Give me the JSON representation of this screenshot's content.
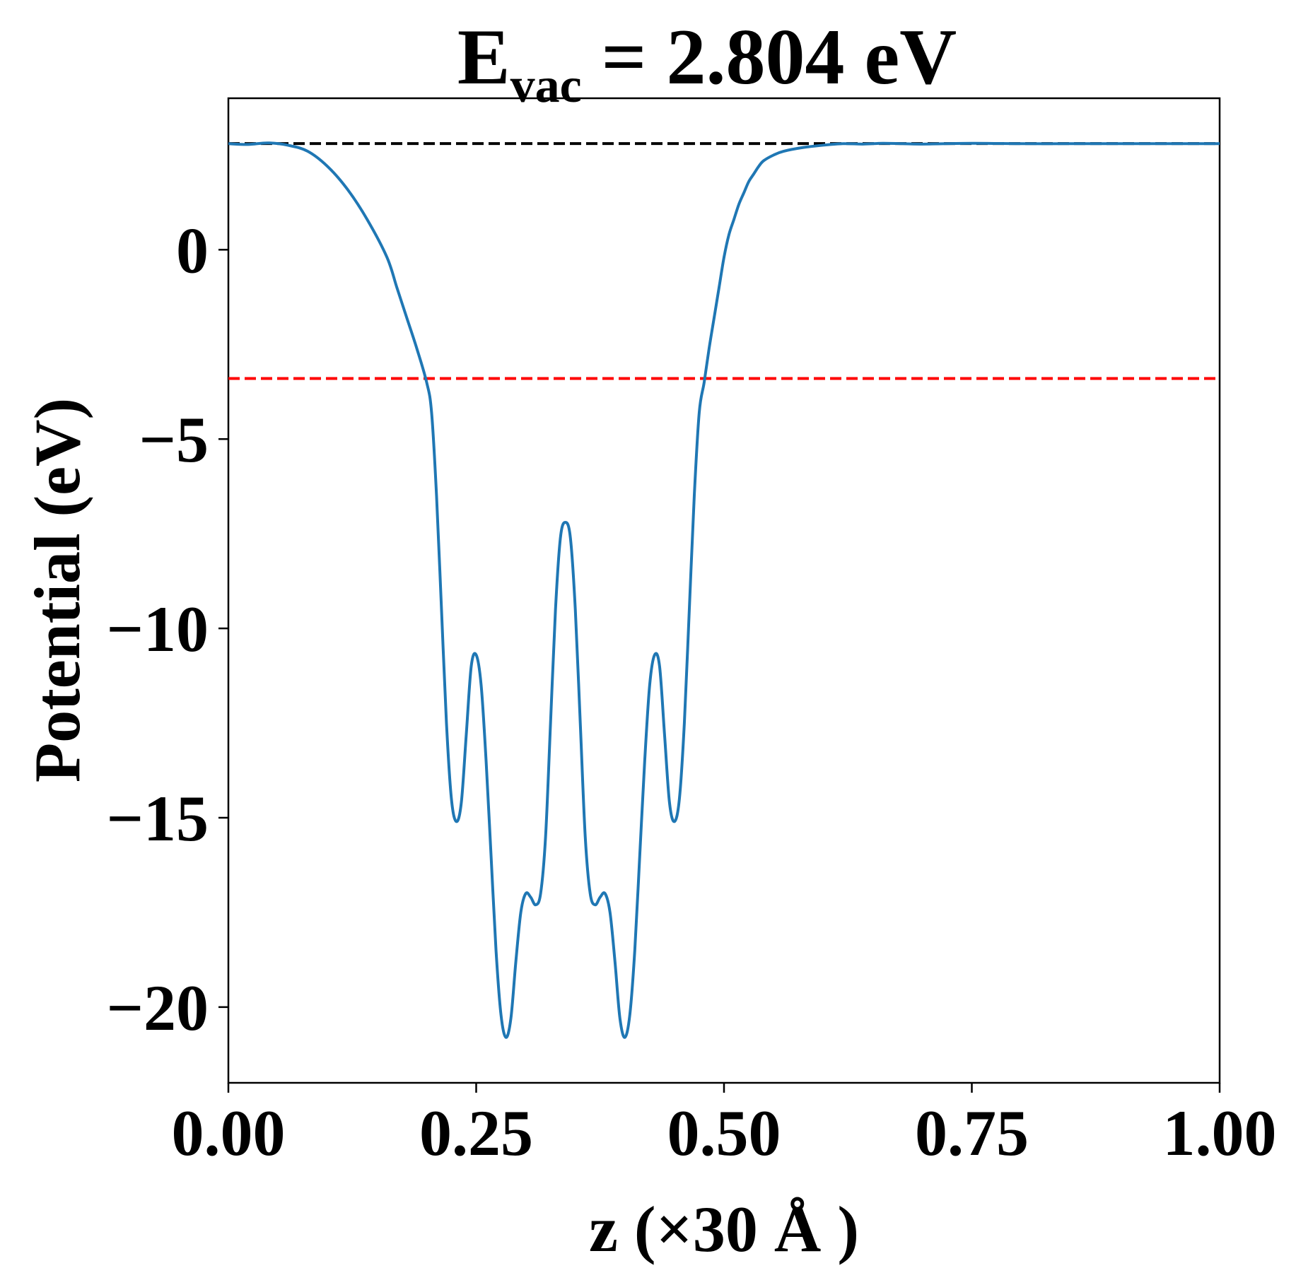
{
  "chart_data": {
    "type": "line",
    "title": {
      "main": "E",
      "subscript": "vac",
      "rest": " = 2.804 eV"
    },
    "xlabel": "z (×30 Å )",
    "ylabel": "Potential (eV)",
    "xlim": [
      0.0,
      1.0
    ],
    "ylim": [
      -22,
      4.0
    ],
    "xticks": [
      0.0,
      0.25,
      0.5,
      0.75,
      1.0
    ],
    "xtick_labels": [
      "0.00",
      "0.25",
      "0.50",
      "0.75",
      "1.00"
    ],
    "yticks": [
      0,
      -5,
      -10,
      -15,
      -20
    ],
    "ytick_labels": [
      "0",
      "−5",
      "−10",
      "−15",
      "−20"
    ],
    "hlines": [
      {
        "y": 2.804,
        "color": "#000000",
        "style": "dashed"
      },
      {
        "y": -3.4,
        "color": "#ff0000",
        "style": "dashed"
      }
    ],
    "series": [
      {
        "color": "#1f77b4",
        "x": [
          0.0,
          0.02,
          0.04,
          0.06,
          0.08,
          0.1,
          0.12,
          0.14,
          0.16,
          0.17,
          0.18,
          0.19,
          0.2,
          0.205,
          0.21,
          0.215,
          0.22,
          0.225,
          0.23,
          0.235,
          0.24,
          0.245,
          0.25,
          0.255,
          0.26,
          0.265,
          0.27,
          0.275,
          0.28,
          0.285,
          0.29,
          0.295,
          0.3,
          0.305,
          0.31,
          0.315,
          0.32,
          0.325,
          0.33,
          0.335,
          0.34,
          0.345,
          0.35,
          0.355,
          0.36,
          0.365,
          0.37,
          0.375,
          0.38,
          0.385,
          0.39,
          0.395,
          0.4,
          0.405,
          0.41,
          0.415,
          0.42,
          0.425,
          0.43,
          0.435,
          0.44,
          0.445,
          0.45,
          0.455,
          0.46,
          0.465,
          0.47,
          0.475,
          0.48,
          0.485,
          0.49,
          0.495,
          0.5,
          0.505,
          0.51,
          0.515,
          0.52,
          0.525,
          0.53,
          0.535,
          0.54,
          0.55,
          0.56,
          0.58,
          0.6,
          0.62,
          0.64,
          0.66,
          0.68,
          0.7,
          0.75,
          0.8,
          0.85,
          0.9,
          0.95,
          1.0
        ],
        "y": [
          2.8,
          2.78,
          2.82,
          2.76,
          2.6,
          2.2,
          1.6,
          0.8,
          -0.2,
          -1.0,
          -1.8,
          -2.6,
          -3.5,
          -4.3,
          -6.5,
          -9.5,
          -12.5,
          -14.5,
          -15.1,
          -14.6,
          -12.8,
          -11.0,
          -10.7,
          -11.5,
          -13.5,
          -16.0,
          -18.5,
          -20.2,
          -20.8,
          -20.3,
          -18.8,
          -17.5,
          -17.0,
          -17.1,
          -17.3,
          -17.0,
          -15.5,
          -12.5,
          -9.5,
          -7.6,
          -7.2,
          -7.6,
          -9.5,
          -12.5,
          -15.5,
          -17.0,
          -17.3,
          -17.1,
          -17.0,
          -17.5,
          -18.8,
          -20.3,
          -20.8,
          -20.2,
          -18.5,
          -16.0,
          -13.5,
          -11.5,
          -10.7,
          -11.0,
          -12.8,
          -14.6,
          -15.1,
          -14.5,
          -12.5,
          -9.5,
          -6.5,
          -4.3,
          -3.5,
          -2.6,
          -1.8,
          -1.0,
          -0.2,
          0.4,
          0.8,
          1.2,
          1.5,
          1.8,
          2.0,
          2.2,
          2.35,
          2.5,
          2.6,
          2.7,
          2.76,
          2.8,
          2.79,
          2.81,
          2.8,
          2.79,
          2.81,
          2.8,
          2.8,
          2.8,
          2.8,
          2.8
        ]
      }
    ]
  }
}
